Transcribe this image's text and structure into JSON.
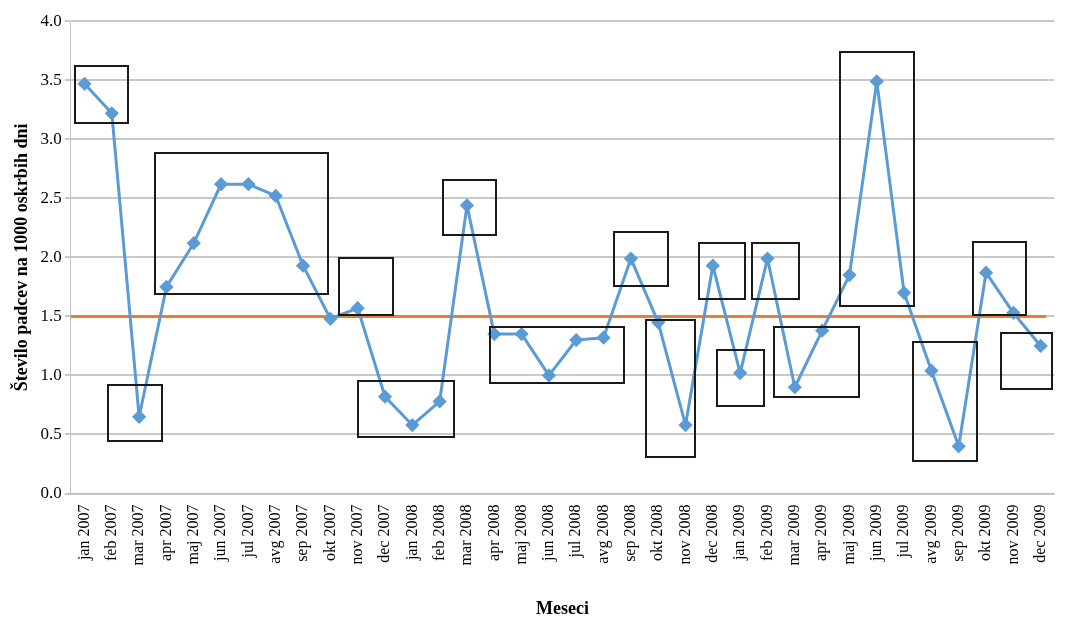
{
  "chart_data": {
    "type": "line",
    "xlabel": "Meseci",
    "ylabel": "Število padcev na 1000 oskrbih dni",
    "categories": [
      "jan 2007",
      "feb 2007",
      "mar 2007",
      "apr 2007",
      "maj 2007",
      "jun 2007",
      "jul 2007",
      "avg 2007",
      "sep 2007",
      "okt 2007",
      "nov 2007",
      "dec 2007",
      "jan 2008",
      "feb 2008",
      "mar 2008",
      "apr 2008",
      "maj 2008",
      "jun 2008",
      "jul 2008",
      "avg 2008",
      "sep 2008",
      "okt 2008",
      "nov 2008",
      "dec 2008",
      "jan 2009",
      "feb 2009",
      "mar 2009",
      "apr 2009",
      "maj 2009",
      "jun 2009",
      "jul 2009",
      "avg 2009",
      "sep 2009",
      "okt 2009",
      "nov 2009",
      "dec 2009"
    ],
    "series": [
      {
        "color": "#5b9bd5",
        "values": [
          3.47,
          3.22,
          0.65,
          1.75,
          2.12,
          2.62,
          2.62,
          2.52,
          1.93,
          1.48,
          1.57,
          0.82,
          0.58,
          0.78,
          2.44,
          1.35,
          1.35,
          1.0,
          1.3,
          1.32,
          1.99,
          1.45,
          0.58,
          1.93,
          1.02,
          1.99,
          0.9,
          1.38,
          1.85,
          3.49,
          1.7,
          1.04,
          0.4,
          1.87,
          1.53,
          1.25
        ]
      }
    ],
    "ylim": [
      0,
      4
    ],
    "yticks": [
      {
        "value": 0,
        "label": "0.0"
      },
      0.5,
      {
        "value": 1,
        "label": "1.0"
      },
      1.5,
      {
        "value": 2,
        "label": "2.0"
      },
      2.5,
      {
        "value": 3,
        "label": "3.0"
      },
      3.5,
      {
        "value": 4,
        "label": "4.0"
      }
    ],
    "ref_lines": [
      {
        "axis": "y",
        "value": 1.5,
        "color": "#ed7d31"
      }
    ],
    "grid": "y",
    "legend": false,
    "marker": "diamond",
    "line_style": "solid"
  }
}
